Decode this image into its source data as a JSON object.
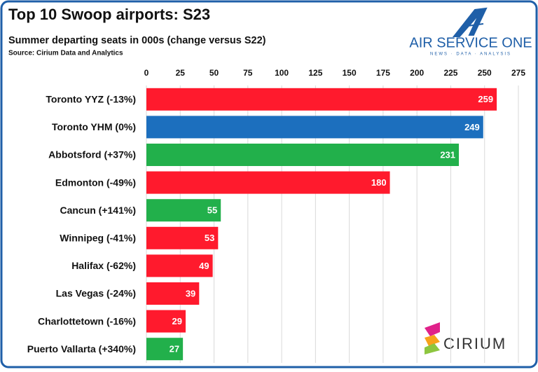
{
  "chart_data": {
    "type": "barh",
    "title": "Top 10 Swoop airports: S23",
    "subtitle": "Summer departing seats in 000s (change versus S22)",
    "source": "Source: Cirium Data and Analytics",
    "categories": [
      "Toronto YYZ (-13%)",
      "Toronto YHM (0%)",
      "Abbotsford (+37%)",
      "Edmonton (-49%)",
      "Cancun (+141%)",
      "Winnipeg (-41%)",
      "Halifax (-62%)",
      "Las Vegas (-24%)",
      "Charlottetown (-16%)",
      "Puerto Vallarta (+340%)"
    ],
    "values": [
      259,
      249,
      231,
      180,
      55,
      53,
      49,
      39,
      29,
      27
    ],
    "colors": [
      "#ff1a2d",
      "#1c6fbe",
      "#22b04b",
      "#ff1a2d",
      "#22b04b",
      "#ff1a2d",
      "#ff1a2d",
      "#ff1a2d",
      "#ff1a2d",
      "#22b04b"
    ],
    "xlim": [
      0,
      275
    ],
    "xticks": [
      0,
      25,
      50,
      75,
      100,
      125,
      150,
      175,
      200,
      225,
      250,
      275
    ],
    "grid": true,
    "annotations": [
      "AIR SERVICE ONE",
      "NEWS · DATA · ANALYSIS",
      "CIRIUM"
    ]
  }
}
